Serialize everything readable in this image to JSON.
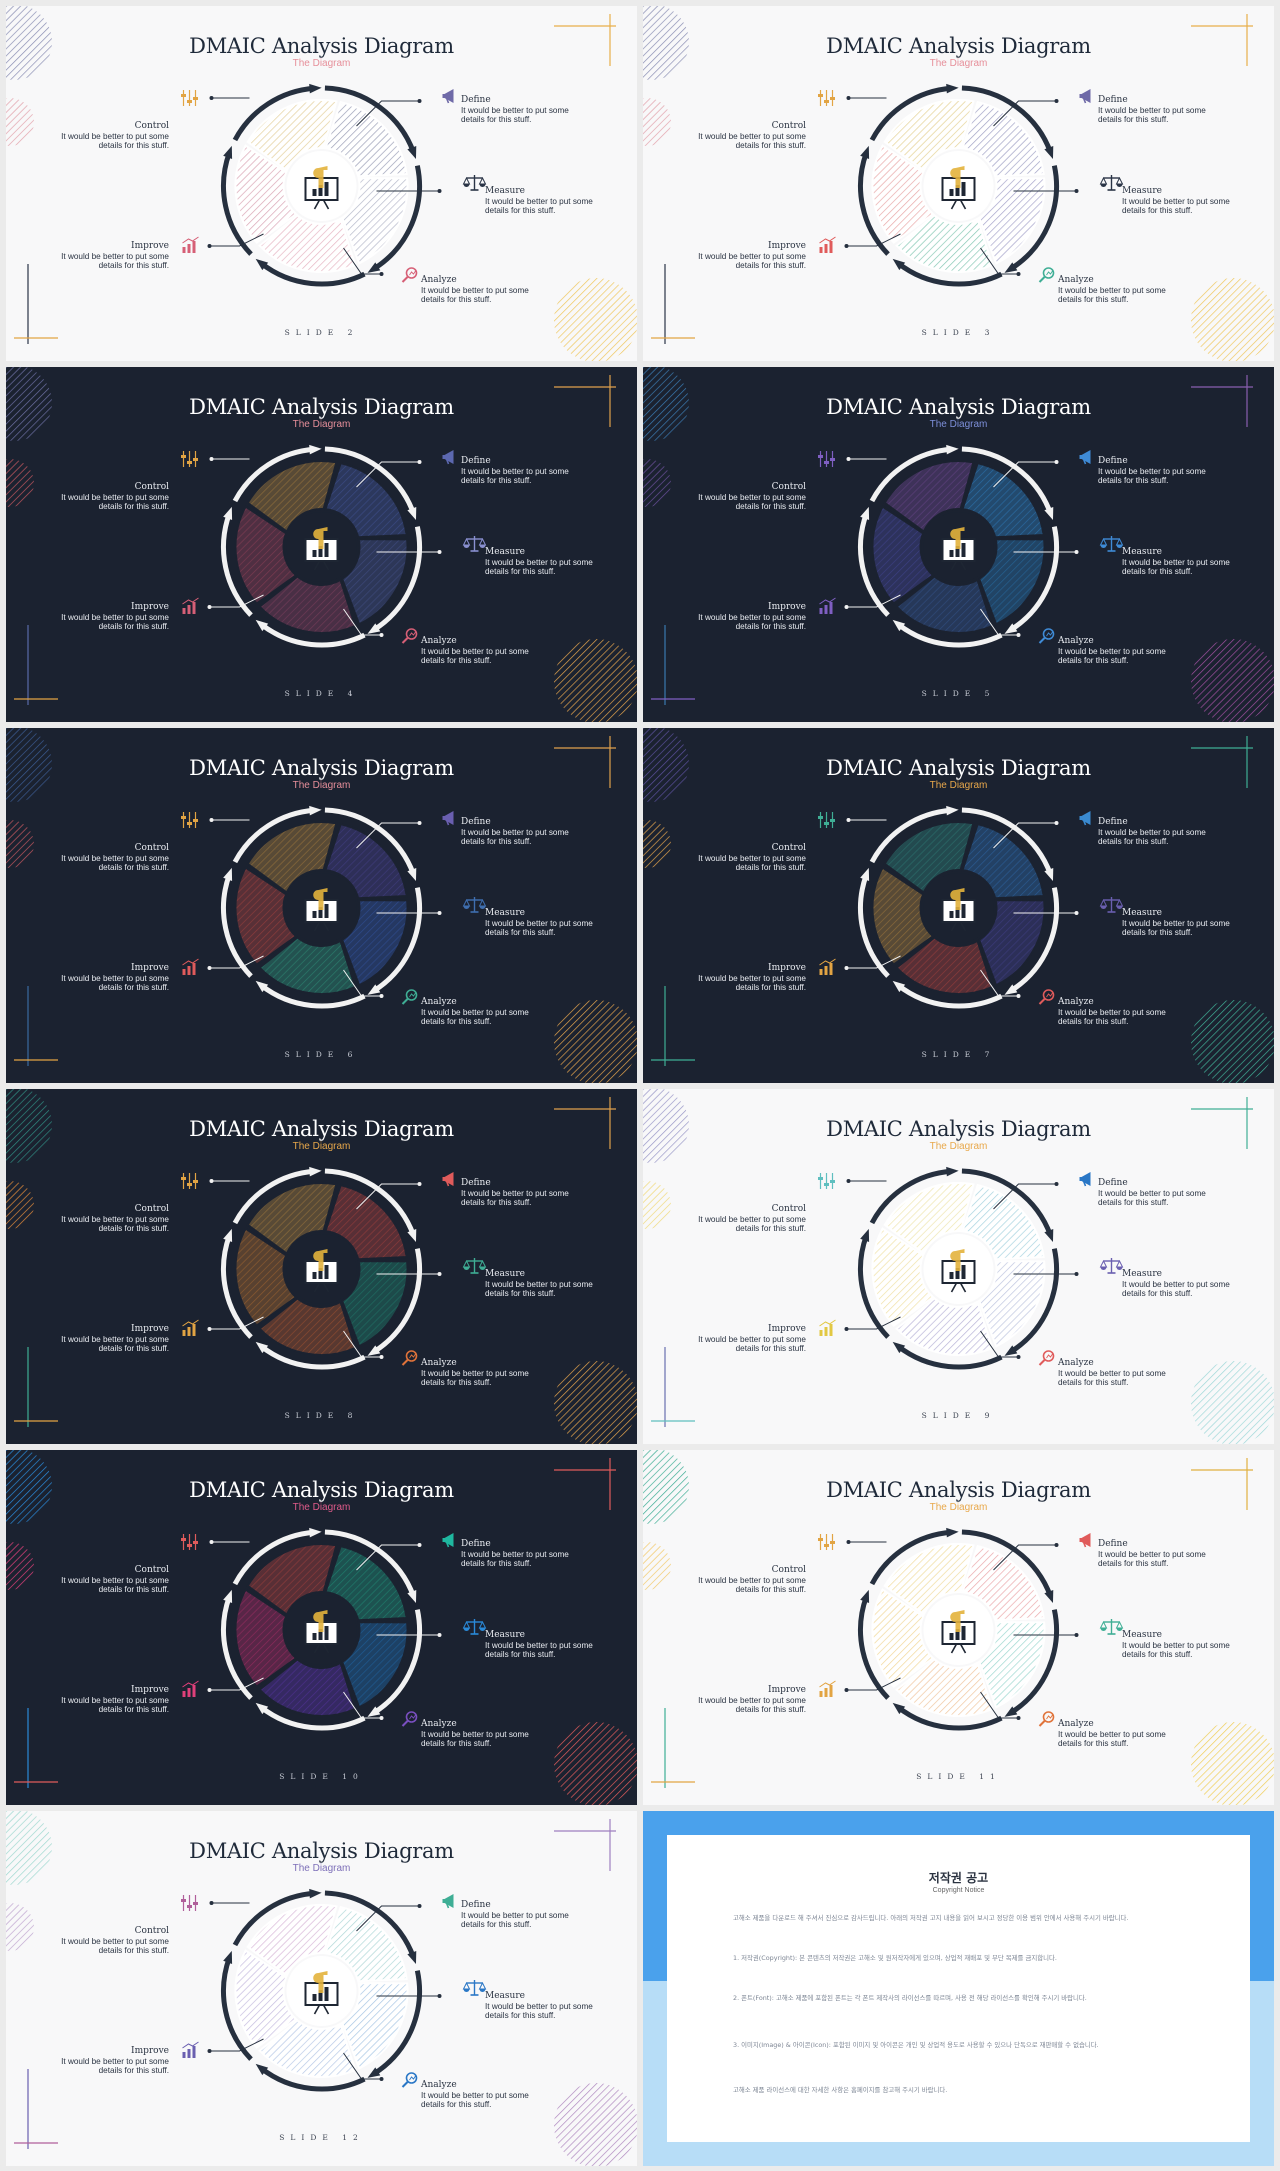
{
  "deck_title": "DMAIC Analysis Diagram",
  "deck_subtitle": "The Diagram",
  "labels": {
    "control": "Control",
    "define": "Define",
    "measure": "Measure",
    "analyze": "Analyze",
    "improve": "Improve",
    "body": "It would be better to put some details for this stuff."
  },
  "slides": [
    {
      "number": "SLIDE 2",
      "theme": "light",
      "subtitle_color": "#e68f9a",
      "icon_colors": {
        "define": "#6f6aa8",
        "measure": "#2a3446",
        "analyze": "#d65f76",
        "improve": "#d65f76",
        "control": "#e2a443"
      },
      "segment_colors": [
        "#9da0b8",
        "#b7bacb",
        "#e6b6c3",
        "#dba6b6",
        "#e4d09c"
      ],
      "ring_color": "#26303f",
      "center_color": "#ffffff",
      "accents": {
        "tl": "#8b8fb4",
        "ml": "#e2a2ab",
        "br": "#efc85f",
        "tr": "#e8ae4b",
        "bl": "#2b3446"
      }
    },
    {
      "number": "SLIDE 3",
      "theme": "light",
      "subtitle_color": "#e68f9a",
      "icon_colors": {
        "define": "#6f6aa8",
        "measure": "#2a3446",
        "analyze": "#3fae95",
        "improve": "#e05b5b",
        "control": "#e2a443"
      },
      "segment_colors": [
        "#a2a3c6",
        "#a8a6cc",
        "#88c9b6",
        "#e9a9a9",
        "#e5d295"
      ],
      "ring_color": "#26303f",
      "center_color": "#ffffff",
      "accents": {
        "tl": "#8b8fb4",
        "ml": "#e2a2ab",
        "br": "#efc85f",
        "tr": "#e8ae4b",
        "bl": "#2b3446"
      }
    },
    {
      "number": "SLIDE 4",
      "theme": "dark",
      "subtitle_color": "#e68f9a",
      "icon_colors": {
        "define": "#5c68b0",
        "measure": "#8a90d0",
        "analyze": "#d65f76",
        "improve": "#d65f76",
        "control": "#e2a443"
      },
      "segment_colors": [
        "#3a4a82",
        "#3c4878",
        "#6e3a56",
        "#7a3a50",
        "#8a6a3a"
      ],
      "ring_color": "#f2f2f2",
      "center_color": "#1b2230",
      "accents": {
        "tl": "#6a6da0",
        "ml": "#c0565e",
        "br": "#e0a14c",
        "tr": "#e0a14c",
        "bl": "#5a6aa8"
      }
    },
    {
      "number": "SLIDE 5",
      "theme": "dark",
      "subtitle_color": "#7d8fd9",
      "icon_colors": {
        "define": "#3f8bd6",
        "measure": "#3f8bd6",
        "analyze": "#3f8bd6",
        "improve": "#7f5fc2",
        "control": "#7f5fc2"
      },
      "segment_colors": [
        "#2a6aa0",
        "#256090",
        "#2f4a7a",
        "#3b3f80",
        "#5a3f7a"
      ],
      "ring_color": "#f2f2f2",
      "center_color": "#1b2230",
      "accents": {
        "tl": "#3a7ab0",
        "ml": "#6a4f9a",
        "br": "#a04fa0",
        "tr": "#8a5fb0",
        "bl": "#3a7ab0"
      }
    },
    {
      "number": "SLIDE 6",
      "theme": "dark",
      "subtitle_color": "#e68f9a",
      "icon_colors": {
        "define": "#6a5fb0",
        "measure": "#3f6fb0",
        "analyze": "#3fae95",
        "improve": "#e05b5b",
        "control": "#e2a443"
      },
      "segment_colors": [
        "#3d3a78",
        "#2d4a8a",
        "#2a7a6a",
        "#8a3c3c",
        "#8a6a3a"
      ],
      "ring_color": "#f2f2f2",
      "center_color": "#1b2230",
      "accents": {
        "tl": "#3a5a90",
        "ml": "#c0565e",
        "br": "#e0a14c",
        "tr": "#e0a14c",
        "bl": "#3a6aa0"
      }
    },
    {
      "number": "SLIDE 7",
      "theme": "dark",
      "subtitle_color": "#e8a84b",
      "icon_colors": {
        "define": "#3a8ad0",
        "measure": "#6a5fb0",
        "analyze": "#e05b5b",
        "improve": "#e2a443",
        "control": "#3fae95"
      },
      "segment_colors": [
        "#2a5a90",
        "#3a3a78",
        "#8a3a3a",
        "#8a6a3a",
        "#2a6a68"
      ],
      "ring_color": "#f2f2f2",
      "center_color": "#1b2230",
      "accents": {
        "tl": "#5a4f9a",
        "ml": "#e0a14c",
        "br": "#3fae95",
        "tr": "#3fae95",
        "bl": "#3fae95"
      }
    },
    {
      "number": "SLIDE 8",
      "theme": "dark",
      "subtitle_color": "#e8a84b",
      "icon_colors": {
        "define": "#e05b5b",
        "measure": "#3fae95",
        "analyze": "#e0733a",
        "improve": "#e2a443",
        "control": "#e2a443"
      },
      "segment_colors": [
        "#8a3a3a",
        "#1f6a60",
        "#8a4a30",
        "#8a5a30",
        "#8a6a3a"
      ],
      "ring_color": "#f2f2f2",
      "center_color": "#1b2230",
      "accents": {
        "tl": "#2f8a80",
        "ml": "#e08a3a",
        "br": "#e0a14c",
        "tr": "#e0a14c",
        "bl": "#3fae95"
      }
    },
    {
      "number": "SLIDE 9",
      "theme": "light",
      "subtitle_color": "#e8a84b",
      "icon_colors": {
        "define": "#2a77c6",
        "measure": "#6a5fb0",
        "analyze": "#e05b5b",
        "improve": "#e2c843",
        "control": "#5fbfbf"
      },
      "segment_colors": [
        "#a8d4e0",
        "#c0c6e0",
        "#b9b4d8",
        "#f0e2a8",
        "#efe6b0"
      ],
      "ring_color": "#26303f",
      "center_color": "#ffffff",
      "accents": {
        "tl": "#9a98c8",
        "ml": "#f0da7a",
        "br": "#9fd8d8",
        "tr": "#3fae95",
        "bl": "#6a6fb0"
      }
    },
    {
      "number": "SLIDE 10",
      "theme": "dark",
      "subtitle_color": "#e05b8a",
      "icon_colors": {
        "define": "#1fb8a0",
        "measure": "#2a8ad8",
        "analyze": "#7a4fc0",
        "improve": "#e0407a",
        "control": "#e05b5b"
      },
      "segment_colors": [
        "#1f7a6a",
        "#1f5a90",
        "#4a2f8a",
        "#8a2a5a",
        "#8a3a3a"
      ],
      "ring_color": "#f2f2f2",
      "center_color": "#1b2230",
      "accents": {
        "tl": "#2a8ad8",
        "ml": "#e0407a",
        "br": "#e05b5b",
        "tr": "#e05b5b",
        "bl": "#2a8ad8"
      }
    },
    {
      "number": "SLIDE 11",
      "theme": "light",
      "subtitle_color": "#e8a84b",
      "icon_colors": {
        "define": "#e05b5b",
        "measure": "#3fae95",
        "analyze": "#e0733a",
        "improve": "#e2a443",
        "control": "#e2a443"
      },
      "segment_colors": [
        "#eba9ac",
        "#9fd8d0",
        "#f0c7a0",
        "#f2d89a",
        "#f0dc9e"
      ],
      "ring_color": "#26303f",
      "center_color": "#ffffff",
      "accents": {
        "tl": "#3fae95",
        "ml": "#f2c96a",
        "br": "#f0cf5a",
        "tr": "#e0b040",
        "bl": "#3fae95"
      }
    },
    {
      "number": "SLIDE 12",
      "theme": "light",
      "subtitle_color": "#7d6fb8",
      "icon_colors": {
        "define": "#3fae95",
        "measure": "#2a77c6",
        "analyze": "#2a77c6",
        "improve": "#6a5fb0",
        "control": "#b05f9a"
      },
      "segment_colors": [
        "#b0d8d8",
        "#a8c6e4",
        "#b8cae6",
        "#c6bde0",
        "#d8b8d8"
      ],
      "ring_color": "#26303f",
      "center_color": "#ffffff",
      "accents": {
        "tl": "#9fd8d0",
        "ml": "#c0a6d0",
        "br": "#b08ac0",
        "tr": "#9f7fc0",
        "bl": "#6a5fb0"
      }
    }
  ],
  "copyright": {
    "title": "저작권 공고",
    "subtitle": "Copyright Notice",
    "p1": "고해소 제품을 다운로드 해 주셔서 진심으로 감사드립니다. 아래의 저작권 고지 내용을 읽어 보시고 정당한 이용 범위 안에서 사용해 주시기 바랍니다.",
    "p2": "1. 저작권(Copyright): 본 콘텐츠의 저작권은 고해소 및 원저작자에게 있으며, 상업적 재배포 및 무단 복제를 금지합니다.",
    "p3": "2. 폰트(Font): 고해소 제품에 포함된 폰트는 각 폰트 제작사의 라이선스를 따르며, 사용 전 해당 라이선스를 확인해 주시기 바랍니다.",
    "p4": "3. 이미지(Image) & 아이콘(Icon): 포함된 이미지 및 아이콘은 개인 및 상업적 용도로 사용할 수 있으나 단독으로 재판매할 수 없습니다.",
    "p5": "고해소 제품 라이선스에 대한 자세한 사항은 홈페이지를 참고해 주시기 바랍니다."
  }
}
